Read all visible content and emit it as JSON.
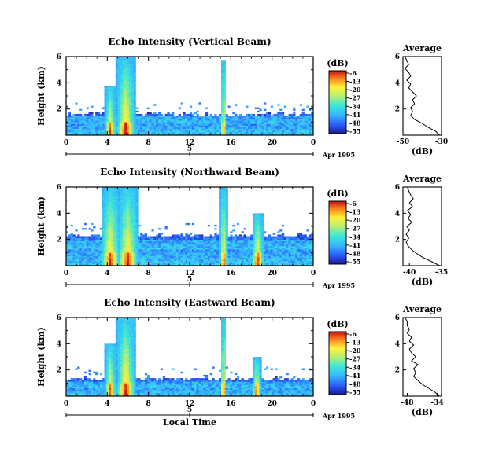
{
  "chart_data": [
    {
      "type": "heatmap",
      "title": "Echo Intensity (Vertical Beam)",
      "ylabel": "Height (km)",
      "x_ticks": [
        "0",
        "4",
        "8",
        "12",
        "16",
        "20",
        "0"
      ],
      "y_ticks": [
        "2",
        "4",
        "6"
      ],
      "xlim_hours": [
        0,
        24
      ],
      "ylim_km": [
        0,
        6
      ],
      "date_axis": {
        "label": "5",
        "date": "Apr 1995"
      },
      "colorbar": {
        "label": "(dB)",
        "ticks": [
          "-6",
          "-13",
          "-20",
          "-27",
          "-34",
          "-41",
          "-48",
          "-55"
        ]
      },
      "background_top_km": 1.5,
      "layer_km": [
        0.85,
        1.45
      ],
      "plumes": [
        {
          "hour": 4.3,
          "top_km": 3.8,
          "width_h": 0.5
        },
        {
          "hour": 5.8,
          "top_km": 6.0,
          "width_h": 0.9
        },
        {
          "hour": 15.3,
          "top_km": 5.8,
          "width_h": 0.25
        }
      ],
      "profile": {
        "title": "Average",
        "xlabel": "(dB)",
        "x_ticks": [
          "-50",
          "-30"
        ],
        "xlim": [
          -50,
          -30
        ],
        "y_ticks": [
          "2",
          "4",
          "6"
        ],
        "ylim": [
          0,
          6
        ],
        "points": [
          [
            -31,
            0.0
          ],
          [
            -33,
            0.3
          ],
          [
            -37,
            0.6
          ],
          [
            -40,
            0.9
          ],
          [
            -44,
            1.2
          ],
          [
            -46,
            1.5
          ],
          [
            -45,
            1.8
          ],
          [
            -46,
            2.1
          ],
          [
            -44,
            2.4
          ],
          [
            -45,
            2.7
          ],
          [
            -43,
            3.0
          ],
          [
            -45,
            3.3
          ],
          [
            -47,
            3.6
          ],
          [
            -46,
            3.9
          ],
          [
            -48,
            4.2
          ],
          [
            -46,
            4.5
          ],
          [
            -47,
            4.8
          ],
          [
            -49,
            5.1
          ],
          [
            -47,
            5.4
          ],
          [
            -48,
            5.7
          ],
          [
            -49,
            6.0
          ]
        ]
      }
    },
    {
      "type": "heatmap",
      "title": "Echo Intensity (Northward Beam)",
      "ylabel": "Height (km)",
      "x_ticks": [
        "0",
        "4",
        "8",
        "12",
        "16",
        "20",
        "0"
      ],
      "y_ticks": [
        "2",
        "4",
        "6"
      ],
      "xlim_hours": [
        0,
        24
      ],
      "ylim_km": [
        0,
        6
      ],
      "date_axis": {
        "label": "5",
        "date": "Apr 1995"
      },
      "colorbar": {
        "label": "(dB)",
        "ticks": [
          "-6",
          "-13",
          "-20",
          "-27",
          "-34",
          "-41",
          "-48",
          "-55"
        ]
      },
      "background_top_km": 2.2,
      "layer_km": [
        1.3,
        2.0
      ],
      "plumes": [
        {
          "hour": 4.3,
          "top_km": 6.0,
          "width_h": 0.9
        },
        {
          "hour": 6.0,
          "top_km": 6.0,
          "width_h": 1.0
        },
        {
          "hour": 15.3,
          "top_km": 6.0,
          "width_h": 0.4
        },
        {
          "hour": 18.6,
          "top_km": 4.0,
          "width_h": 0.6
        }
      ],
      "profile": {
        "title": "Average",
        "xlabel": "(dB)",
        "x_ticks": [
          "-40",
          "-35"
        ],
        "xlim": [
          -41,
          -35
        ],
        "y_ticks": [
          "2",
          "4",
          "6"
        ],
        "ylim": [
          0,
          6
        ],
        "points": [
          [
            -35.3,
            0.0
          ],
          [
            -36.5,
            0.3
          ],
          [
            -37.8,
            0.6
          ],
          [
            -38.8,
            0.9
          ],
          [
            -39.6,
            1.2
          ],
          [
            -40.2,
            1.5
          ],
          [
            -40.5,
            1.8
          ],
          [
            -40.1,
            2.1
          ],
          [
            -40.5,
            2.4
          ],
          [
            -40.0,
            2.7
          ],
          [
            -40.4,
            3.0
          ],
          [
            -39.6,
            3.3
          ],
          [
            -40.2,
            3.6
          ],
          [
            -39.8,
            3.9
          ],
          [
            -40.3,
            4.2
          ],
          [
            -39.5,
            4.5
          ],
          [
            -40.0,
            4.8
          ],
          [
            -39.4,
            5.1
          ],
          [
            -39.8,
            5.4
          ],
          [
            -40.1,
            5.7
          ],
          [
            -40.3,
            6.0
          ]
        ]
      }
    },
    {
      "type": "heatmap",
      "title": "Echo Intensity (Eastward Beam)",
      "ylabel": "Height (km)",
      "xlabel": "Local Time",
      "x_ticks": [
        "0",
        "4",
        "8",
        "12",
        "16",
        "20",
        "0"
      ],
      "y_ticks": [
        "2",
        "4",
        "6"
      ],
      "xlim_hours": [
        0,
        24
      ],
      "ylim_km": [
        0,
        6
      ],
      "date_axis": {
        "label": "5",
        "date": "Apr 1995"
      },
      "colorbar": {
        "label": "(dB)",
        "ticks": [
          "-6",
          "-13",
          "-20",
          "-27",
          "-34",
          "-41",
          "-48",
          "-55"
        ]
      },
      "background_top_km": 1.2,
      "layer_km": [
        0.6,
        1.1
      ],
      "plumes": [
        {
          "hour": 4.3,
          "top_km": 4.0,
          "width_h": 0.5
        },
        {
          "hour": 5.8,
          "top_km": 6.0,
          "width_h": 0.9
        },
        {
          "hour": 15.3,
          "top_km": 6.0,
          "width_h": 0.3
        },
        {
          "hour": 18.5,
          "top_km": 3.0,
          "width_h": 0.4
        }
      ],
      "profile": {
        "title": "Average",
        "xlabel": "(dB)",
        "x_ticks": [
          "-48",
          "-34"
        ],
        "xlim": [
          -50,
          -32
        ],
        "y_ticks": [
          "2",
          "4",
          "6"
        ],
        "ylim": [
          0,
          6
        ],
        "points": [
          [
            -33,
            0.0
          ],
          [
            -35,
            0.3
          ],
          [
            -38,
            0.6
          ],
          [
            -41,
            0.9
          ],
          [
            -43,
            1.2
          ],
          [
            -45,
            1.5
          ],
          [
            -44,
            1.8
          ],
          [
            -45,
            2.1
          ],
          [
            -43,
            2.4
          ],
          [
            -46,
            2.7
          ],
          [
            -44,
            3.0
          ],
          [
            -46,
            3.3
          ],
          [
            -47,
            3.6
          ],
          [
            -45,
            3.9
          ],
          [
            -47,
            4.2
          ],
          [
            -46,
            4.5
          ],
          [
            -48,
            4.8
          ],
          [
            -47,
            5.1
          ],
          [
            -48,
            5.4
          ],
          [
            -48,
            5.7
          ],
          [
            -49,
            6.0
          ]
        ]
      }
    }
  ]
}
